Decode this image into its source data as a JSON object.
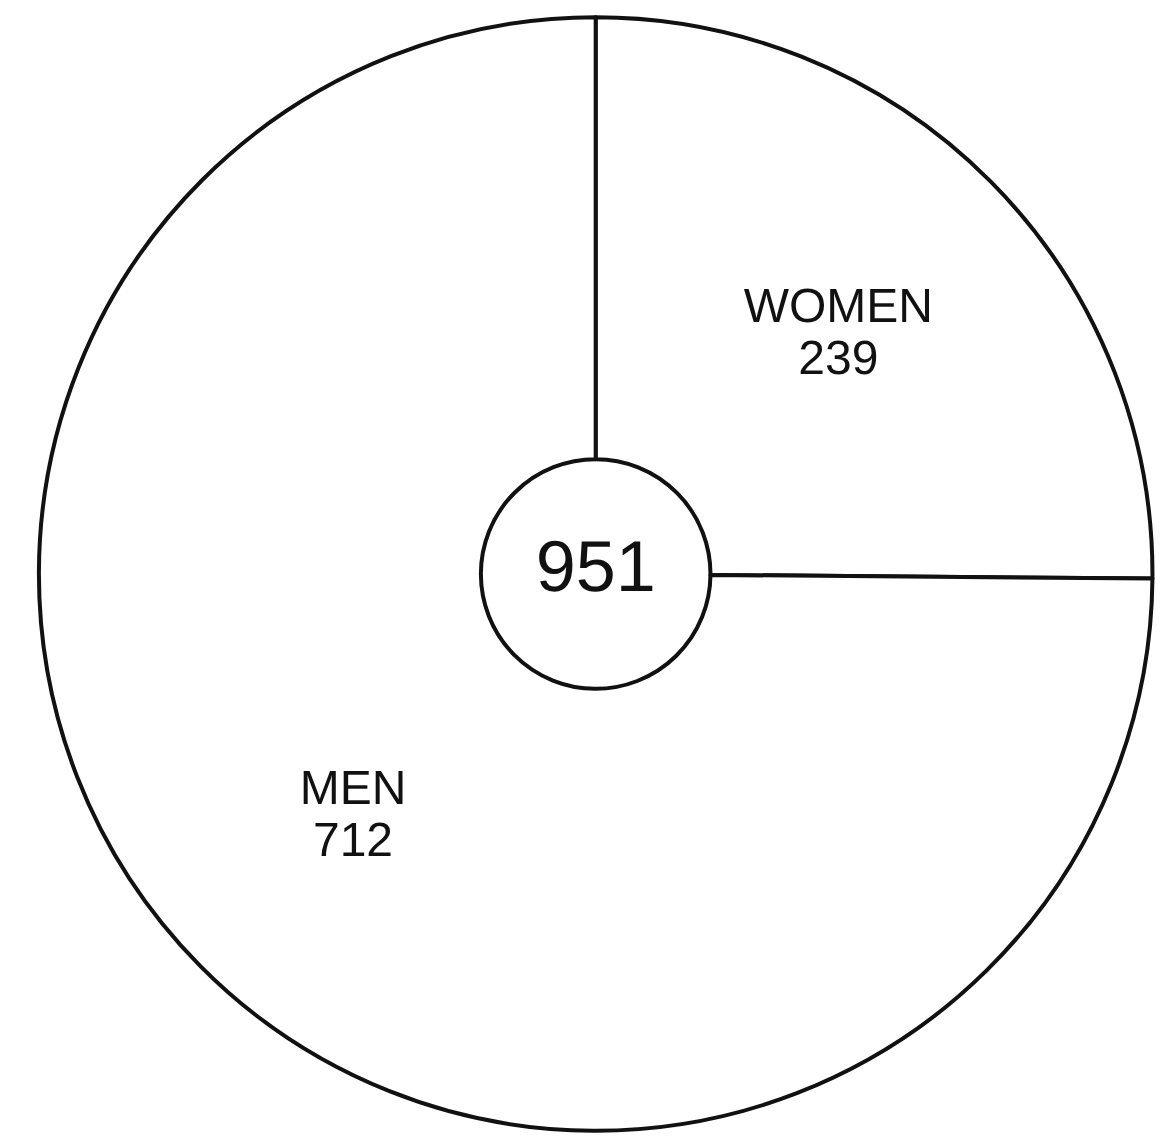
{
  "chart_data": {
    "type": "donut",
    "categories": [
      "WOMEN",
      "MEN"
    ],
    "values": [
      239,
      712
    ],
    "colors": [
      "#ffffff",
      "#ffffff"
    ],
    "data_labels": true,
    "legend": false,
    "annotations": [
      "951"
    ]
  }
}
